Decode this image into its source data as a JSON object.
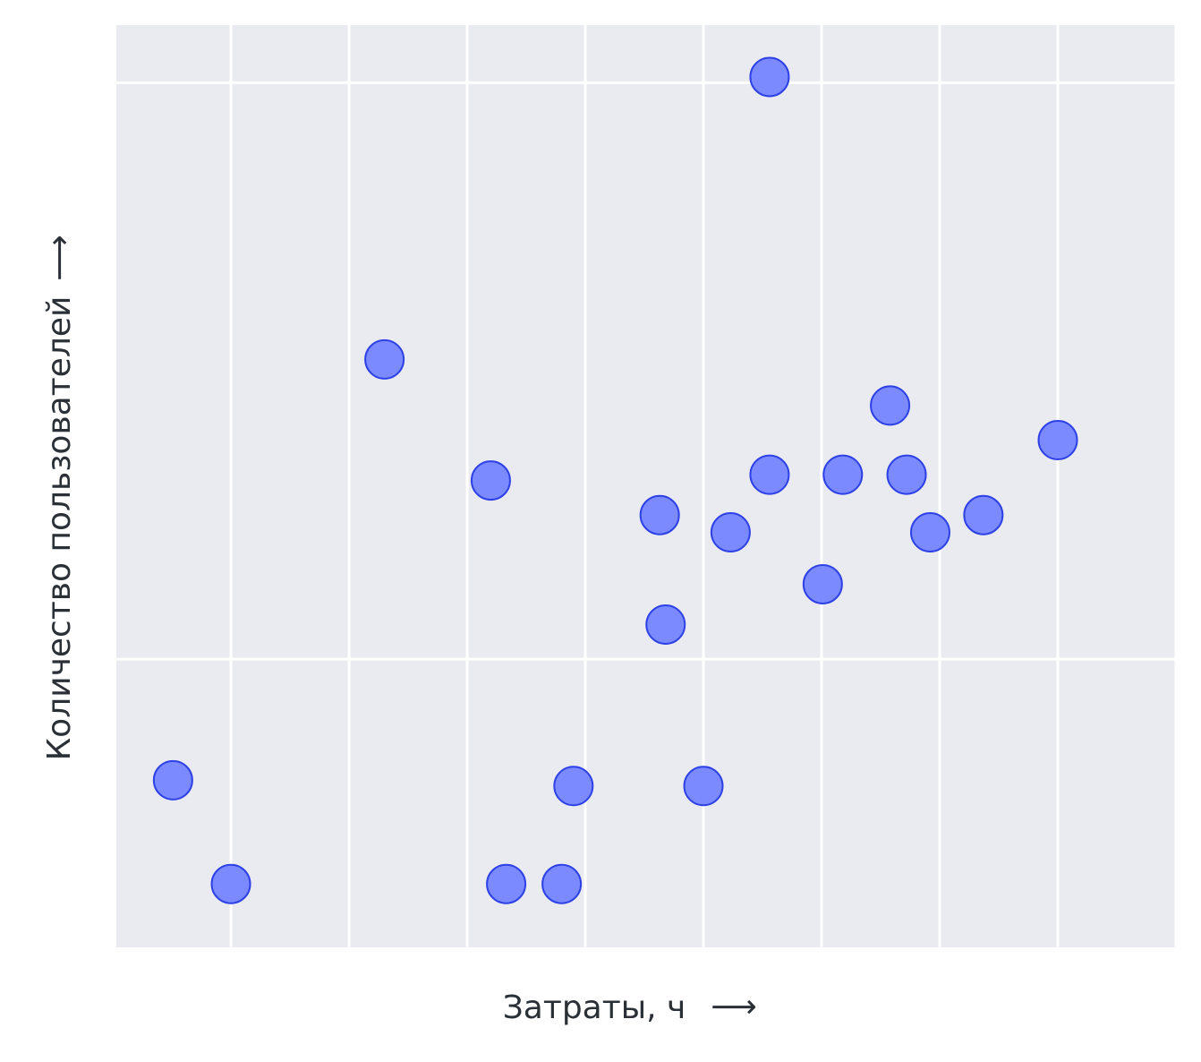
{
  "chart_data": {
    "type": "scatter",
    "xlabel": "Затраты, ч",
    "ylabel": "Количество пользователей",
    "axis_arrow": "⟶",
    "x_ticks": [
      0,
      1,
      2,
      3,
      4,
      5,
      6,
      7,
      8
    ],
    "y_ticks": [
      0,
      1
    ],
    "xlim": [
      -0.97,
      8.0
    ],
    "ylim": [
      -0.5,
      1.1
    ],
    "grid": true,
    "points": [
      {
        "x": -0.49,
        "y": -0.21
      },
      {
        "x": 0.0,
        "y": -0.39
      },
      {
        "x": 1.3,
        "y": 0.52
      },
      {
        "x": 2.2,
        "y": 0.31
      },
      {
        "x": 2.33,
        "y": -0.39
      },
      {
        "x": 2.8,
        "y": -0.39
      },
      {
        "x": 2.9,
        "y": -0.22
      },
      {
        "x": 3.63,
        "y": 0.25
      },
      {
        "x": 3.68,
        "y": 0.06
      },
      {
        "x": 4.0,
        "y": -0.22
      },
      {
        "x": 4.23,
        "y": 0.22
      },
      {
        "x": 4.56,
        "y": 1.01
      },
      {
        "x": 4.56,
        "y": 0.32
      },
      {
        "x": 5.01,
        "y": 0.13
      },
      {
        "x": 5.18,
        "y": 0.32
      },
      {
        "x": 5.58,
        "y": 0.44
      },
      {
        "x": 5.72,
        "y": 0.32
      },
      {
        "x": 5.92,
        "y": 0.22
      },
      {
        "x": 6.37,
        "y": 0.25
      },
      {
        "x": 7.0,
        "y": 0.38
      }
    ],
    "colors": {
      "background": "#eaebf0",
      "grid": "#ffffff",
      "marker_fill": "#7b8bff",
      "marker_stroke": "#2e41e6"
    }
  }
}
